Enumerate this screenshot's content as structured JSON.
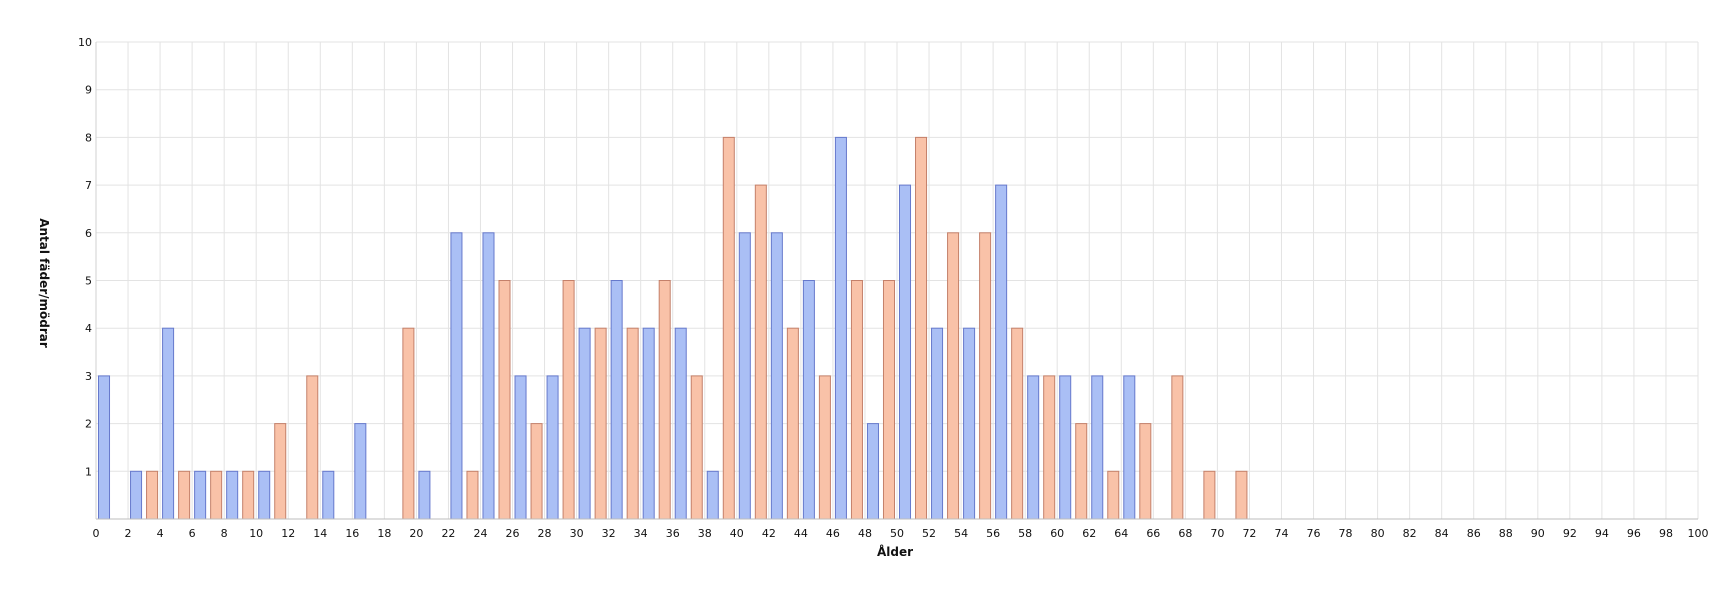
{
  "chart_data": {
    "type": "bar",
    "xlabel": "Ålder",
    "ylabel": "Antal fäder/mödrar",
    "xlim": [
      0,
      100
    ],
    "ylim": [
      0,
      10
    ],
    "x_ticks": [
      0,
      2,
      4,
      6,
      8,
      10,
      12,
      14,
      16,
      18,
      20,
      22,
      24,
      26,
      28,
      30,
      32,
      34,
      36,
      38,
      40,
      42,
      44,
      46,
      48,
      50,
      52,
      54,
      56,
      58,
      60,
      62,
      64,
      66,
      68,
      70,
      72,
      74,
      76,
      78,
      80,
      82,
      84,
      86,
      88,
      90,
      92,
      94,
      96,
      98,
      100
    ],
    "y_ticks": [
      1,
      2,
      3,
      4,
      5,
      6,
      7,
      8,
      9,
      10
    ],
    "grid": true,
    "series": [
      {
        "color": "#aabff5",
        "edge": "#6679cc",
        "points": [
          {
            "x": 0,
            "y": 3
          },
          {
            "x": 2,
            "y": 1
          },
          {
            "x": 4,
            "y": 4
          },
          {
            "x": 6,
            "y": 1
          },
          {
            "x": 8,
            "y": 1
          },
          {
            "x": 10,
            "y": 1
          },
          {
            "x": 14,
            "y": 1
          },
          {
            "x": 16,
            "y": 2
          },
          {
            "x": 20,
            "y": 1
          },
          {
            "x": 22,
            "y": 6
          },
          {
            "x": 24,
            "y": 6
          },
          {
            "x": 26,
            "y": 3
          },
          {
            "x": 28,
            "y": 3
          },
          {
            "x": 30,
            "y": 4
          },
          {
            "x": 32,
            "y": 5
          },
          {
            "x": 34,
            "y": 4
          },
          {
            "x": 36,
            "y": 4
          },
          {
            "x": 38,
            "y": 1
          },
          {
            "x": 40,
            "y": 6
          },
          {
            "x": 42,
            "y": 6
          },
          {
            "x": 44,
            "y": 5
          },
          {
            "x": 46,
            "y": 8
          },
          {
            "x": 48,
            "y": 2
          },
          {
            "x": 50,
            "y": 7
          },
          {
            "x": 52,
            "y": 4
          },
          {
            "x": 54,
            "y": 4
          },
          {
            "x": 56,
            "y": 7
          },
          {
            "x": 58,
            "y": 3
          },
          {
            "x": 60,
            "y": 3
          },
          {
            "x": 62,
            "y": 3
          },
          {
            "x": 64,
            "y": 3
          }
        ]
      },
      {
        "color": "#f9c2a8",
        "edge": "#c4806a",
        "points": [
          {
            "x": 2,
            "y": 1
          },
          {
            "x": 4,
            "y": 1
          },
          {
            "x": 6,
            "y": 1
          },
          {
            "x": 8,
            "y": 1
          },
          {
            "x": 10,
            "y": 2
          },
          {
            "x": 12,
            "y": 3
          },
          {
            "x": 18,
            "y": 4
          },
          {
            "x": 22,
            "y": 1
          },
          {
            "x": 24,
            "y": 5
          },
          {
            "x": 26,
            "y": 2
          },
          {
            "x": 28,
            "y": 5
          },
          {
            "x": 30,
            "y": 4
          },
          {
            "x": 32,
            "y": 4
          },
          {
            "x": 34,
            "y": 5
          },
          {
            "x": 36,
            "y": 3
          },
          {
            "x": 38,
            "y": 8
          },
          {
            "x": 40,
            "y": 7
          },
          {
            "x": 42,
            "y": 4
          },
          {
            "x": 44,
            "y": 3
          },
          {
            "x": 46,
            "y": 5
          },
          {
            "x": 48,
            "y": 5
          },
          {
            "x": 50,
            "y": 8
          },
          {
            "x": 52,
            "y": 6
          },
          {
            "x": 54,
            "y": 6
          },
          {
            "x": 56,
            "y": 4
          },
          {
            "x": 58,
            "y": 3
          },
          {
            "x": 60,
            "y": 2
          },
          {
            "x": 62,
            "y": 1
          },
          {
            "x": 64,
            "y": 2
          },
          {
            "x": 66,
            "y": 3
          },
          {
            "x": 68,
            "y": 1
          },
          {
            "x": 70,
            "y": 1
          }
        ]
      }
    ]
  }
}
